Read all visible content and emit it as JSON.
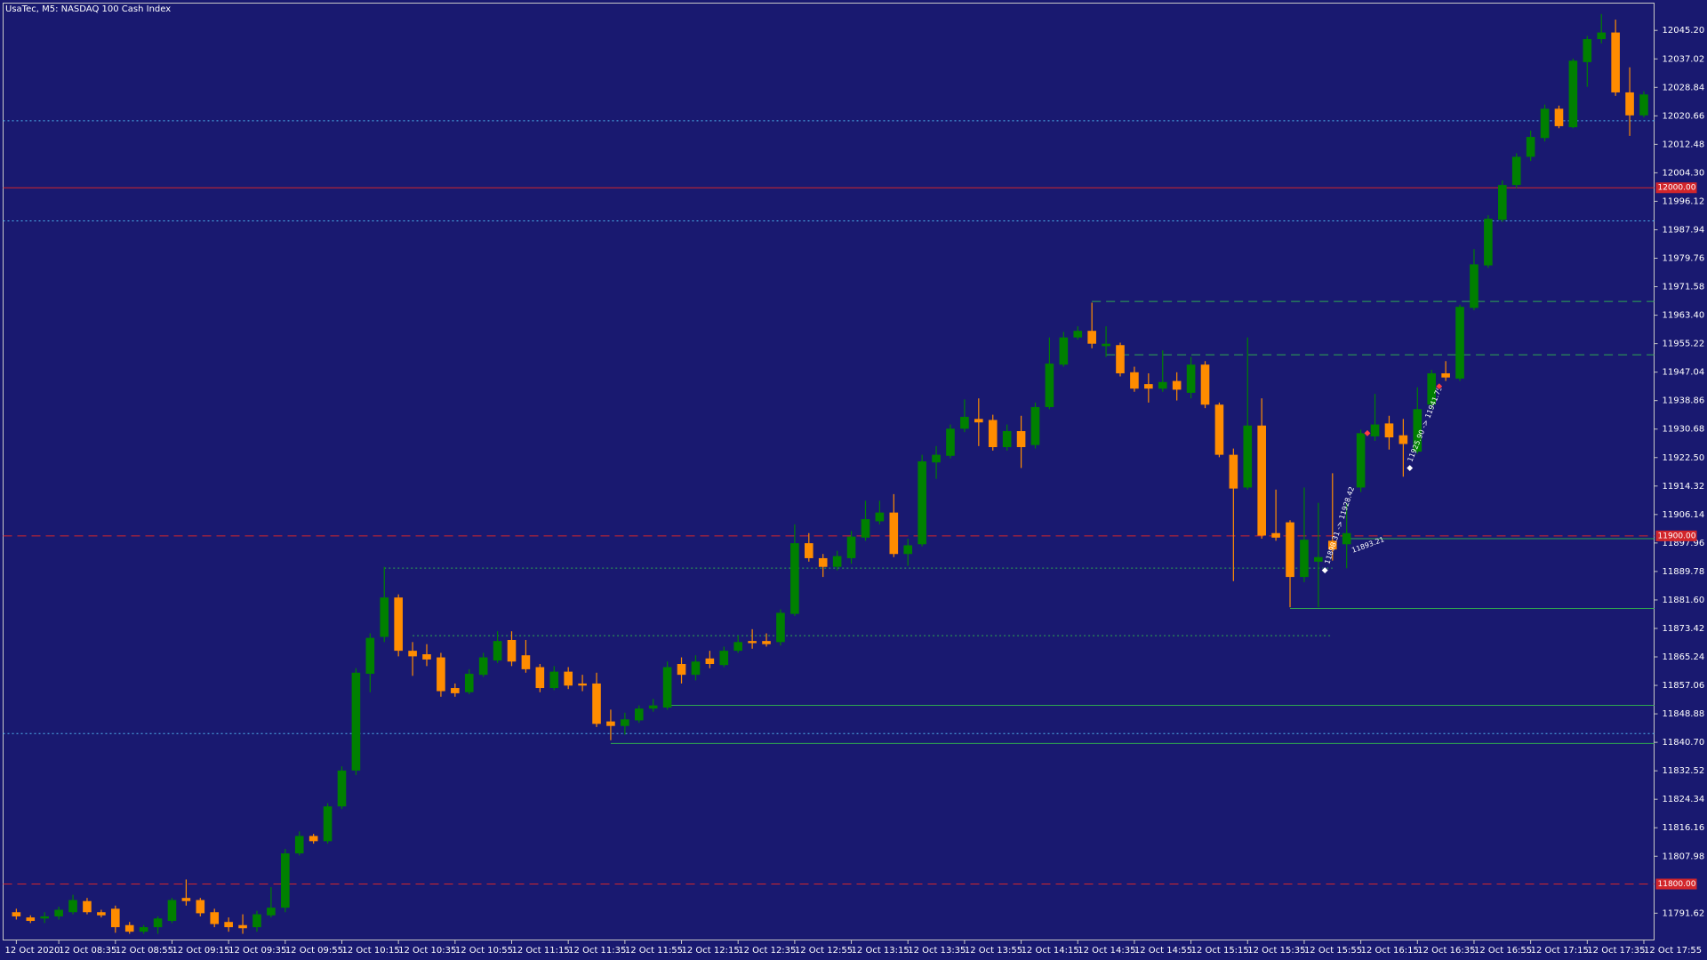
{
  "chart_data": {
    "type": "candlestick",
    "title": "UsaTec, M5:  NASDAQ 100 Cash Index",
    "up_color": "#008000",
    "down_color": "#ff8c00",
    "ylim": [
      11783.8,
      12053.0
    ],
    "yticks": [
      {
        "value": 12045.2,
        "label": "12045.20"
      },
      {
        "value": 12037.02,
        "label": "12037.02"
      },
      {
        "value": 12028.84,
        "label": "12028.84"
      },
      {
        "value": 12020.66,
        "label": "12020.66"
      },
      {
        "value": 12012.48,
        "label": "12012.48"
      },
      {
        "value": 12004.3,
        "label": "12004.30"
      },
      {
        "value": 11996.12,
        "label": "11996.12"
      },
      {
        "value": 11987.94,
        "label": "11987.94"
      },
      {
        "value": 11979.76,
        "label": "11979.76"
      },
      {
        "value": 11971.58,
        "label": "11971.58"
      },
      {
        "value": 11963.4,
        "label": "11963.40"
      },
      {
        "value": 11955.22,
        "label": "11955.22"
      },
      {
        "value": 11947.04,
        "label": "11947.04"
      },
      {
        "value": 11938.86,
        "label": "11938.86"
      },
      {
        "value": 11930.68,
        "label": "11930.68"
      },
      {
        "value": 11922.5,
        "label": "11922.50"
      },
      {
        "value": 11914.32,
        "label": "11914.32"
      },
      {
        "value": 11906.14,
        "label": "11906.14"
      },
      {
        "value": 11897.96,
        "label": "11897.96"
      },
      {
        "value": 11889.78,
        "label": "11889.78"
      },
      {
        "value": 11881.6,
        "label": "11881.60"
      },
      {
        "value": 11873.42,
        "label": "11873.42"
      },
      {
        "value": 11865.24,
        "label": "11865.24"
      },
      {
        "value": 11857.06,
        "label": "11857.06"
      },
      {
        "value": 11848.88,
        "label": "11848.88"
      },
      {
        "value": 11840.7,
        "label": "11840.70"
      },
      {
        "value": 11832.52,
        "label": "11832.52"
      },
      {
        "value": 11824.34,
        "label": "11824.34"
      },
      {
        "value": 11816.16,
        "label": "11816.16"
      },
      {
        "value": 11807.98,
        "label": "11807.98"
      },
      {
        "value": 11791.62,
        "label": "11791.62"
      }
    ],
    "categories": [
      "12 Oct 2020",
      null,
      null,
      "12 Oct 08:35",
      null,
      null,
      null,
      "12 Oct 08:55",
      null,
      null,
      null,
      "12 Oct 09:15",
      null,
      null,
      null,
      "12 Oct 09:35",
      null,
      null,
      null,
      "12 Oct 09:55",
      null,
      null,
      null,
      "12 Oct 10:15",
      null,
      null,
      null,
      "12 Oct 10:35",
      null,
      null,
      null,
      "12 Oct 10:55",
      null,
      null,
      null,
      "12 Oct 11:15",
      null,
      null,
      null,
      "12 Oct 11:35",
      null,
      null,
      null,
      "12 Oct 11:55",
      null,
      null,
      null,
      "12 Oct 12:15",
      null,
      null,
      null,
      "12 Oct 12:35",
      null,
      null,
      null,
      "12 Oct 12:55",
      null,
      null,
      null,
      "12 Oct 13:15",
      null,
      null,
      null,
      "12 Oct 13:35",
      null,
      null,
      null,
      "12 Oct 13:55",
      null,
      null,
      null,
      "12 Oct 14:15",
      null,
      null,
      null,
      "12 Oct 14:35",
      null,
      null,
      null,
      "12 Oct 14:55",
      null,
      null,
      null,
      "12 Oct 15:15",
      null,
      null,
      null,
      "12 Oct 15:35",
      null,
      null,
      null,
      "12 Oct 15:55",
      null,
      null,
      null,
      "12 Oct 16:15",
      null,
      null,
      null,
      "12 Oct 16:35",
      null,
      null,
      null,
      "12 Oct 16:55",
      null,
      null,
      null,
      "12 Oct 17:15",
      null,
      null,
      null,
      "12 Oct 17:35",
      null,
      null,
      null,
      "12 Oct 17:55"
    ],
    "open": [
      11791.9,
      11790.4,
      11790.1,
      11790.7,
      11791.9,
      11795.1,
      11791.9,
      11792.9,
      11788.2,
      11786.3,
      11787.6,
      11789.4,
      11796.0,
      11795.4,
      11791.9,
      11789.1,
      11788.2,
      11787.6,
      11791.0,
      11793.2,
      11808.8,
      11813.8,
      11812.3,
      11822.3,
      11832.6,
      11860.4,
      11871.0,
      11882.3,
      11867.0,
      11866.0,
      11865.1,
      11856.3,
      11855.1,
      11860.1,
      11864.2,
      11870.1,
      11865.7,
      11862.3,
      11856.3,
      11861.0,
      11857.6,
      11857.6,
      11846.7,
      11845.4,
      11847.0,
      11850.4,
      11850.7,
      11863.2,
      11860.1,
      11864.8,
      11862.9,
      11867.0,
      11869.8,
      11869.8,
      11869.5,
      11877.6,
      11897.9,
      11893.6,
      11891.1,
      11893.6,
      11899.5,
      11904.2,
      11906.7,
      11894.8,
      11897.6,
      11921.1,
      11923.0,
      11930.8,
      11933.6,
      11933.3,
      11925.5,
      11930.1,
      11926.1,
      11937.0,
      11949.2,
      11957.0,
      11958.9,
      11954.5,
      11954.8,
      11947.0,
      11943.6,
      11942.3,
      11944.5,
      11941.1,
      11949.2,
      11937.7,
      11923.3,
      11913.9,
      11931.7,
      11900.8,
      11903.9,
      11888.2,
      11892.6,
      11898.6,
      11897.6,
      11913.9,
      11928.6,
      11932.3,
      11928.9,
      11924.2,
      11937.7,
      11946.7,
      11945.2,
      11965.5,
      11977.7,
      11990.8,
      12000.8,
      12008.9,
      12014.3,
      12022.7,
      12017.4,
      12036.1,
      12042.7,
      12044.6,
      12027.4,
      12020.8
    ],
    "high": [
      11792.9,
      11791.0,
      11791.9,
      11793.5,
      11796.9,
      11796.0,
      11792.6,
      11793.8,
      11789.1,
      11788.2,
      11790.7,
      11796.0,
      11801.3,
      11796.0,
      11792.9,
      11790.4,
      11791.3,
      11792.3,
      11799.1,
      11810.1,
      11815.1,
      11814.4,
      11823.2,
      11833.8,
      11862.0,
      11872.0,
      11891.1,
      11883.2,
      11869.5,
      11868.9,
      11866.4,
      11857.6,
      11861.7,
      11866.4,
      11872.6,
      11872.6,
      11870.1,
      11863.2,
      11862.6,
      11862.3,
      11860.1,
      11860.7,
      11850.1,
      11849.2,
      11851.3,
      11853.2,
      11863.9,
      11865.1,
      11865.7,
      11867.0,
      11868.2,
      11871.4,
      11873.2,
      11872.0,
      11878.9,
      11903.3,
      11900.8,
      11894.8,
      11895.7,
      11901.4,
      11910.1,
      11910.1,
      11912.0,
      11899.2,
      11923.3,
      11925.8,
      11932.0,
      11939.2,
      11939.5,
      11934.8,
      11932.0,
      11934.5,
      11938.3,
      11957.0,
      11958.6,
      11960.2,
      11967.0,
      11960.2,
      11955.5,
      11948.6,
      11946.7,
      11953.3,
      11947.0,
      11951.4,
      11950.2,
      11938.3,
      11925.1,
      11957.0,
      11939.5,
      11913.3,
      11904.5,
      11913.9,
      11909.5,
      11918.0,
      11909.5,
      11930.5,
      11940.8,
      11934.5,
      11933.6,
      11942.7,
      11947.7,
      11950.2,
      11966.4,
      11982.4,
      11992.1,
      12002.1,
      12009.9,
      12016.4,
      12023.9,
      12023.6,
      12037.1,
      12043.6,
      12049.9,
      12048.3,
      12034.6,
      12027.7
    ],
    "low": [
      11789.8,
      11788.8,
      11788.8,
      11789.8,
      11791.3,
      11791.3,
      11790.4,
      11786.0,
      11785.7,
      11785.7,
      11785.7,
      11788.8,
      11793.8,
      11790.7,
      11787.6,
      11786.3,
      11785.7,
      11786.3,
      11790.4,
      11791.9,
      11808.2,
      11811.6,
      11811.6,
      11821.6,
      11831.3,
      11855.1,
      11869.5,
      11865.4,
      11859.8,
      11862.6,
      11853.8,
      11853.8,
      11854.5,
      11859.5,
      11863.5,
      11862.6,
      11860.7,
      11855.1,
      11855.7,
      11856.0,
      11855.4,
      11845.1,
      11841.3,
      11842.9,
      11846.3,
      11849.5,
      11850.1,
      11857.6,
      11858.5,
      11862.0,
      11862.3,
      11866.4,
      11867.6,
      11868.2,
      11868.5,
      11877.0,
      11892.6,
      11888.2,
      11890.1,
      11892.0,
      11898.6,
      11903.3,
      11893.9,
      11891.4,
      11897.0,
      11916.4,
      11922.3,
      11929.8,
      11925.8,
      11924.5,
      11924.5,
      11919.5,
      11925.1,
      11936.4,
      11948.6,
      11956.4,
      11953.9,
      11951.4,
      11945.8,
      11941.4,
      11938.3,
      11941.4,
      11938.9,
      11939.5,
      11936.7,
      11922.6,
      11887.0,
      11913.3,
      11899.2,
      11898.6,
      11879.5,
      11886.7,
      11879.5,
      11892.9,
      11890.7,
      11912.6,
      11927.3,
      11924.8,
      11917.0,
      11923.6,
      11936.4,
      11944.5,
      11944.5,
      11964.8,
      11977.0,
      11990.2,
      11999.9,
      12007.7,
      12013.3,
      12017.1,
      12017.1,
      12029.0,
      12041.5,
      12026.4,
      12014.9,
      12020.2
    ],
    "close": [
      11790.7,
      11789.4,
      11790.7,
      11792.6,
      11795.4,
      11791.9,
      11791.0,
      11787.6,
      11786.3,
      11787.6,
      11790.1,
      11795.4,
      11795.1,
      11791.6,
      11788.5,
      11787.6,
      11787.3,
      11791.3,
      11793.2,
      11808.8,
      11813.8,
      11812.3,
      11822.3,
      11832.6,
      11860.7,
      11870.7,
      11882.3,
      11867.0,
      11865.4,
      11864.5,
      11855.4,
      11854.8,
      11860.4,
      11865.1,
      11869.8,
      11863.9,
      11861.7,
      11856.3,
      11861.0,
      11857.0,
      11857.0,
      11846.0,
      11845.4,
      11847.3,
      11850.4,
      11851.3,
      11862.3,
      11860.1,
      11863.9,
      11863.2,
      11867.0,
      11869.5,
      11869.2,
      11868.9,
      11877.9,
      11897.9,
      11893.6,
      11891.1,
      11894.2,
      11899.8,
      11904.8,
      11906.7,
      11894.8,
      11897.3,
      11921.4,
      11923.3,
      11930.8,
      11934.2,
      11932.6,
      11925.5,
      11930.1,
      11925.5,
      11937.0,
      11949.5,
      11957.0,
      11958.9,
      11955.2,
      11955.2,
      11946.7,
      11942.3,
      11942.3,
      11944.2,
      11942.0,
      11949.2,
      11937.7,
      11923.3,
      11913.6,
      11931.7,
      11900.1,
      11899.5,
      11888.2,
      11898.9,
      11893.9,
      11896.1,
      11900.8,
      11929.5,
      11932.0,
      11928.3,
      11926.4,
      11936.4,
      11946.7,
      11945.5,
      11965.8,
      11978.0,
      11991.1,
      12000.8,
      12008.9,
      12014.6,
      12022.7,
      12017.7,
      12036.5,
      12042.7,
      12044.6,
      12027.4,
      12020.8,
      12026.8
    ],
    "levels": [
      {
        "value": 12000,
        "label": "12000.00",
        "color": "#d2262b",
        "style": "solid",
        "from": 0
      },
      {
        "value": 11900,
        "label": "11900.00",
        "color": "#d2262b",
        "style": "dashed",
        "from": 0
      },
      {
        "value": 11800,
        "label": "11800.00",
        "color": "#d2262b",
        "style": "dashed",
        "from": 0
      },
      {
        "value": 12019.25,
        "color": "#4fb6ef",
        "style": "dotted",
        "from": 0
      },
      {
        "value": 11990.49,
        "color": "#4fb6ef",
        "style": "dotted",
        "from": 0
      },
      {
        "value": 11843.21,
        "color": "#4fb6ef",
        "style": "dotted",
        "from": 0
      },
      {
        "value": 11967.34,
        "color": "#2fa84f",
        "style": "dashed",
        "from": 76
      },
      {
        "value": 11952.03,
        "color": "#2fa84f",
        "style": "dashed",
        "from": 77
      },
      {
        "value": 11890.74,
        "color": "#2fa84f",
        "style": "dotted",
        "from": 26,
        "to": 93
      },
      {
        "value": 11871.35,
        "color": "#2fa84f",
        "style": "dotted",
        "from": 28,
        "to": 93
      },
      {
        "value": 11899.19,
        "color": "#2fa84f",
        "style": "solid",
        "from": 94
      },
      {
        "value": 11879.17,
        "color": "#2fa84f",
        "style": "solid",
        "from": 90
      },
      {
        "value": 11851.34,
        "color": "#2fa84f",
        "style": "solid",
        "from": 46
      },
      {
        "value": 11840.39,
        "color": "#2fa84f",
        "style": "solid",
        "from": 42
      }
    ],
    "annotations": [
      "11898.31 -> 11928.42",
      "11893.21",
      "11925.90 -> 11941.79"
    ]
  }
}
